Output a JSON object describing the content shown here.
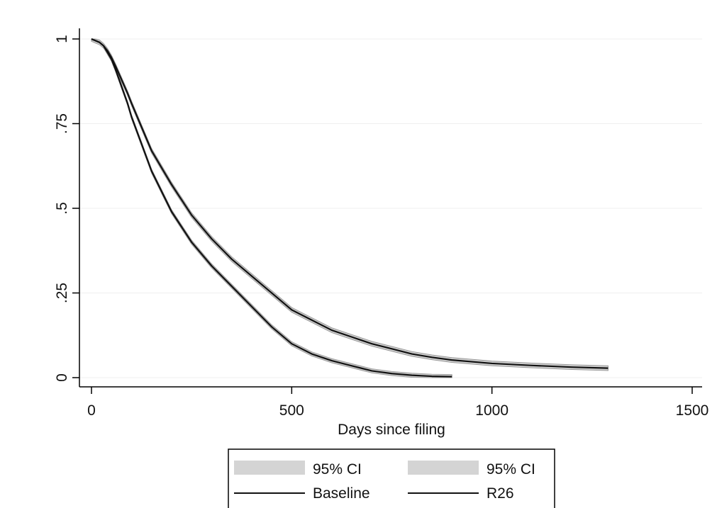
{
  "chart_data": {
    "type": "line",
    "title": "",
    "xlabel": "Days since filing",
    "ylabel": "",
    "xlim": [
      0,
      1500
    ],
    "ylim": [
      0,
      1
    ],
    "xticks": [
      0,
      500,
      1000,
      1500
    ],
    "xtick_labels": [
      "0",
      "500",
      "1000",
      "1500"
    ],
    "yticks": [
      0,
      0.25,
      0.5,
      0.75,
      1
    ],
    "ytick_labels": [
      "0",
      ".25",
      ".5",
      ".75",
      "1"
    ],
    "grid": true,
    "legend_position": "bottom",
    "legend": [
      {
        "label": "95% CI",
        "kind": "band"
      },
      {
        "label": "95% CI",
        "kind": "band"
      },
      {
        "label": "Baseline",
        "kind": "line"
      },
      {
        "label": "R26",
        "kind": "line"
      }
    ],
    "series": [
      {
        "name": "Baseline",
        "ci_halfwidth": 0.006,
        "x": [
          0,
          10,
          20,
          30,
          40,
          50,
          60,
          75,
          90,
          100,
          125,
          150,
          175,
          200,
          250,
          300,
          350,
          400,
          450,
          500,
          550,
          600,
          650,
          700,
          750,
          800,
          850,
          900
        ],
        "y": [
          1.0,
          0.995,
          0.99,
          0.98,
          0.96,
          0.94,
          0.91,
          0.86,
          0.81,
          0.77,
          0.69,
          0.61,
          0.55,
          0.49,
          0.4,
          0.33,
          0.27,
          0.21,
          0.15,
          0.1,
          0.07,
          0.05,
          0.035,
          0.02,
          0.012,
          0.007,
          0.004,
          0.003
        ]
      },
      {
        "name": "R26",
        "ci_halfwidth": 0.007,
        "x": [
          0,
          10,
          20,
          30,
          40,
          50,
          60,
          75,
          90,
          100,
          125,
          150,
          175,
          200,
          250,
          300,
          350,
          400,
          450,
          500,
          550,
          600,
          650,
          700,
          750,
          800,
          850,
          900,
          1000,
          1100,
          1200,
          1290
        ],
        "y": [
          1.0,
          0.995,
          0.99,
          0.98,
          0.965,
          0.945,
          0.92,
          0.88,
          0.84,
          0.81,
          0.74,
          0.67,
          0.62,
          0.57,
          0.48,
          0.41,
          0.35,
          0.3,
          0.25,
          0.2,
          0.17,
          0.14,
          0.12,
          0.1,
          0.085,
          0.07,
          0.06,
          0.052,
          0.042,
          0.036,
          0.031,
          0.028
        ]
      }
    ]
  }
}
